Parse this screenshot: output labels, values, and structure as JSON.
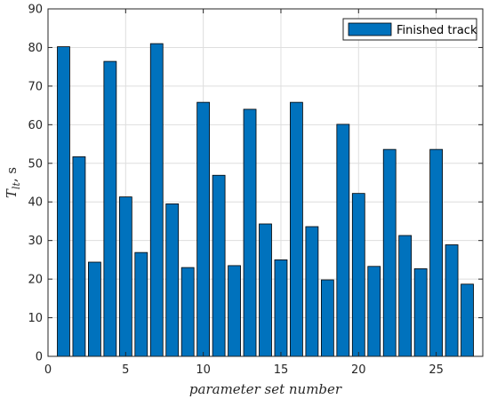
{
  "chart_data": {
    "type": "bar",
    "title": "",
    "xlabel": "parameter set number",
    "ylabel_main": "T",
    "ylabel_sub": "lt",
    "ylabel_unit": ", s",
    "x": [
      1,
      2,
      3,
      4,
      5,
      6,
      7,
      8,
      9,
      10,
      11,
      12,
      13,
      14,
      15,
      16,
      17,
      18,
      19,
      20,
      21,
      22,
      23,
      24,
      25,
      26,
      27
    ],
    "series": [
      {
        "name": "Finished track",
        "values": [
          80.2,
          51.7,
          24.4,
          76.4,
          41.3,
          26.9,
          81.0,
          39.5,
          23.0,
          65.8,
          46.9,
          23.5,
          64.0,
          34.3,
          25.0,
          65.8,
          33.6,
          19.8,
          60.1,
          42.2,
          23.3,
          53.6,
          31.3,
          22.7,
          53.6,
          28.9,
          18.7
        ]
      }
    ],
    "xlim": [
      0,
      28
    ],
    "ylim": [
      0,
      90
    ],
    "xticks": [
      "0",
      "5",
      "10",
      "15",
      "20",
      "25"
    ],
    "yticks": [
      "0",
      "10",
      "20",
      "30",
      "40",
      "50",
      "60",
      "70",
      "80",
      "90"
    ],
    "grid": true,
    "legend_position": "top-right",
    "bar_color": "#0072BD",
    "bar_edge_color": "#000000"
  }
}
